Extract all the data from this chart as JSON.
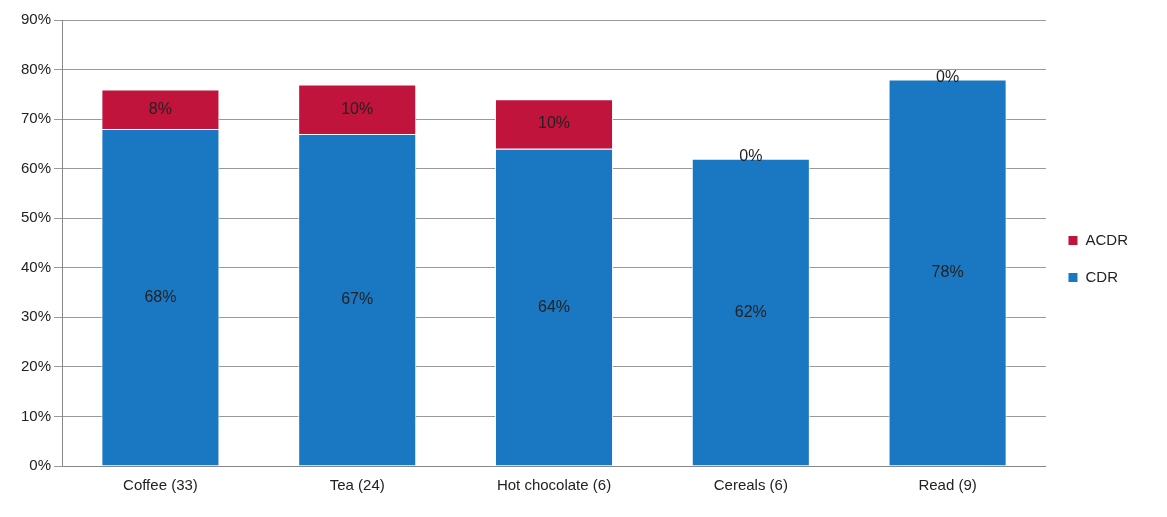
{
  "chart_data": {
    "type": "bar",
    "stacked": true,
    "categories": [
      "Coffee (33)",
      "Tea (24)",
      "Hot chocolate (6)",
      "Cereals (6)",
      "Read (9)"
    ],
    "series": [
      {
        "name": "CDR",
        "color": "#1a78c2",
        "values": [
          68,
          67,
          64,
          62,
          78
        ],
        "value_labels": [
          "68%",
          "67%",
          "64%",
          "62%",
          "78%"
        ]
      },
      {
        "name": "ACDR",
        "color": "#c0143c",
        "values": [
          8,
          10,
          10,
          0,
          0
        ],
        "value_labels": [
          "8%",
          "10%",
          "10%",
          "0%",
          "0%"
        ]
      }
    ],
    "ylim": [
      0,
      90
    ],
    "yticks": [
      {
        "value": 0,
        "label": "0%"
      },
      {
        "value": 10,
        "label": "10%"
      },
      {
        "value": 20,
        "label": "20%"
      },
      {
        "value": 30,
        "label": "30%"
      },
      {
        "value": 40,
        "label": "40%"
      },
      {
        "value": 50,
        "label": "50%"
      },
      {
        "value": 60,
        "label": "60%"
      },
      {
        "value": 70,
        "label": "70%"
      },
      {
        "value": 80,
        "label": "80%"
      },
      {
        "value": 90,
        "label": "90%"
      }
    ],
    "grid": "y",
    "legend": "right"
  }
}
